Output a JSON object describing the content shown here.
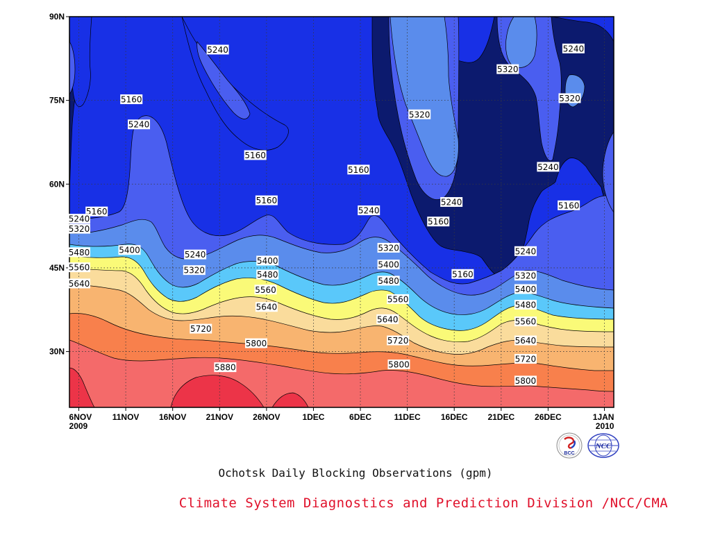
{
  "chart_data": {
    "type": "contour",
    "title": "Ochotsk Daily Blocking Observations (gpm)",
    "x_ticks": [
      {
        "day": 0,
        "label": "6NOV",
        "sub": "2009"
      },
      {
        "day": 5,
        "label": "11NOV"
      },
      {
        "day": 10,
        "label": "16NOV"
      },
      {
        "day": 15,
        "label": "21NOV"
      },
      {
        "day": 20,
        "label": "26NOV"
      },
      {
        "day": 25,
        "label": "1DEC"
      },
      {
        "day": 30,
        "label": "6DEC"
      },
      {
        "day": 35,
        "label": "11DEC"
      },
      {
        "day": 40,
        "label": "16DEC"
      },
      {
        "day": 45,
        "label": "21DEC"
      },
      {
        "day": 50,
        "label": "26DEC"
      },
      {
        "day": 56,
        "label": "1JAN",
        "sub": "2010"
      }
    ],
    "x_range_days": [
      -1,
      57
    ],
    "y_ticks": [
      {
        "lat": 30,
        "label": "30N"
      },
      {
        "lat": 45,
        "label": "45N"
      },
      {
        "lat": 60,
        "label": "60N"
      },
      {
        "lat": 75,
        "label": "75N"
      },
      {
        "lat": 90,
        "label": "90N"
      }
    ],
    "y_range_lat": [
      20,
      90
    ],
    "grid": true,
    "levels": [
      5160,
      5240,
      5320,
      5400,
      5480,
      5560,
      5640,
      5720,
      5800,
      5880
    ],
    "colors": [
      "#0c1a6e",
      "#1830e6",
      "#4a5ef0",
      "#5a8cec",
      "#5ac8fa",
      "#fafa78",
      "#fadc9c",
      "#f8b470",
      "#f8804c",
      "#f46a6a",
      "#ec3448"
    ],
    "contour_labels": [
      {
        "text": "5240",
        "day": 14.8,
        "lat": 84.1
      },
      {
        "text": "5160",
        "day": 5.6,
        "lat": 75.2
      },
      {
        "text": "5240",
        "day": 6.4,
        "lat": 70.7
      },
      {
        "text": "5160",
        "day": 18.8,
        "lat": 65.2
      },
      {
        "text": "5160",
        "day": 20.0,
        "lat": 57.1
      },
      {
        "text": "5160",
        "day": 29.8,
        "lat": 62.6
      },
      {
        "text": "5240",
        "day": 30.9,
        "lat": 55.3
      },
      {
        "text": "5320",
        "day": 36.3,
        "lat": 72.5
      },
      {
        "text": "5240",
        "day": 39.7,
        "lat": 56.8
      },
      {
        "text": "5160",
        "day": 38.3,
        "lat": 53.3
      },
      {
        "text": "5160",
        "day": 40.9,
        "lat": 43.9
      },
      {
        "text": "5320",
        "day": 45.7,
        "lat": 80.6
      },
      {
        "text": "5240",
        "day": 52.7,
        "lat": 84.3
      },
      {
        "text": "5320",
        "day": 52.3,
        "lat": 75.4
      },
      {
        "text": "5240",
        "day": 50.0,
        "lat": 63.1
      },
      {
        "text": "5160",
        "day": 52.2,
        "lat": 56.2
      },
      {
        "text": "5160",
        "day": 1.9,
        "lat": 55.1
      },
      {
        "text": "5240",
        "day": -0.4,
        "lat": 53.8
      },
      {
        "text": "5320",
        "day": -0.4,
        "lat": 52.0
      },
      {
        "text": "5400",
        "day": 5.4,
        "lat": 48.2
      },
      {
        "text": "5480",
        "day": -0.4,
        "lat": 47.8
      },
      {
        "text": "5560",
        "day": -0.4,
        "lat": 45.1
      },
      {
        "text": "5640",
        "day": -0.4,
        "lat": 42.2
      },
      {
        "text": "5240",
        "day": 12.4,
        "lat": 47.4
      },
      {
        "text": "5320",
        "day": 12.3,
        "lat": 44.6
      },
      {
        "text": "5400",
        "day": 20.1,
        "lat": 46.3
      },
      {
        "text": "5480",
        "day": 20.1,
        "lat": 43.8
      },
      {
        "text": "5560",
        "day": 19.9,
        "lat": 41.1
      },
      {
        "text": "5640",
        "day": 20.0,
        "lat": 38.0
      },
      {
        "text": "5720",
        "day": 13.0,
        "lat": 34.1
      },
      {
        "text": "5800",
        "day": 18.9,
        "lat": 31.5
      },
      {
        "text": "5880",
        "day": 15.6,
        "lat": 27.2
      },
      {
        "text": "5320",
        "day": 33.0,
        "lat": 48.6
      },
      {
        "text": "5400",
        "day": 33.0,
        "lat": 45.6
      },
      {
        "text": "5480",
        "day": 33.0,
        "lat": 42.7
      },
      {
        "text": "5560",
        "day": 34.0,
        "lat": 39.4
      },
      {
        "text": "5640",
        "day": 32.9,
        "lat": 35.8
      },
      {
        "text": "5720",
        "day": 34.0,
        "lat": 32.0
      },
      {
        "text": "5800",
        "day": 34.1,
        "lat": 27.7
      },
      {
        "text": "5240",
        "day": 47.6,
        "lat": 48.0
      },
      {
        "text": "5320",
        "day": 47.6,
        "lat": 43.6
      },
      {
        "text": "5400",
        "day": 47.6,
        "lat": 41.2
      },
      {
        "text": "5480",
        "day": 47.6,
        "lat": 38.4
      },
      {
        "text": "5560",
        "day": 47.6,
        "lat": 35.4
      },
      {
        "text": "5640",
        "day": 47.6,
        "lat": 32.0
      },
      {
        "text": "5720",
        "day": 47.6,
        "lat": 28.7
      },
      {
        "text": "5800",
        "day": 47.6,
        "lat": 24.8
      }
    ]
  },
  "caption": "Ochotsk Daily Blocking Observations (gpm)",
  "credit": "Climate System Diagnostics and Prediction Division /NCC/CMA",
  "logos": {
    "bcc": "BCC",
    "ncc": "NCC"
  }
}
